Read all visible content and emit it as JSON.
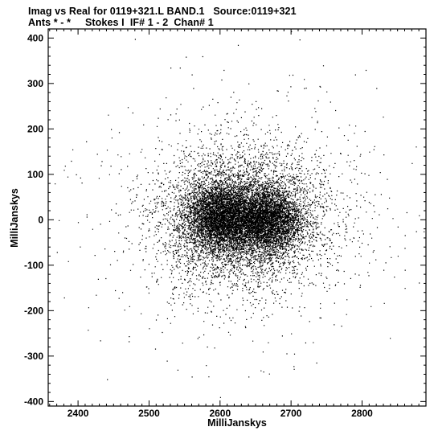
{
  "header": {
    "line1": "Imag vs Real for 0119+321.L BAND.1   Source:0119+321",
    "line2": "Ants * - *     Stokes I  IF# 1 - 2  Chan# 1"
  },
  "chart_data": {
    "type": "scatter",
    "title": "Imag vs Real for 0119+321.L BAND.1   Source:0119+321",
    "subtitle": "Ants * - *     Stokes I  IF# 1 - 2  Chan# 1",
    "xlabel": "MilliJanskys",
    "ylabel": "MilliJanskys",
    "xlim": [
      2358,
      2890
    ],
    "ylim": [
      -410,
      420
    ],
    "xticks": [
      2400,
      2500,
      2600,
      2700,
      2800
    ],
    "yticks": [
      -400,
      -300,
      -200,
      -100,
      0,
      100,
      200,
      300,
      400
    ],
    "grid": false,
    "point_color": "#000000",
    "clusters": [
      {
        "center": [
          2602,
          5
        ],
        "spread": [
          26,
          38
        ],
        "count": 4200
      },
      {
        "center": [
          2666,
          0
        ],
        "spread": [
          24,
          34
        ],
        "count": 3400
      },
      {
        "center": [
          2630,
          5
        ],
        "spread": [
          58,
          78
        ],
        "count": 4800
      },
      {
        "center": [
          2630,
          5
        ],
        "spread": [
          95,
          125
        ],
        "count": 900
      }
    ],
    "outliers": [
      [
        2367,
        80
      ],
      [
        2380,
        110
      ],
      [
        2385,
        95
      ],
      [
        2390,
        130
      ],
      [
        2392,
        155
      ],
      [
        2397,
        100
      ],
      [
        2405,
        82
      ],
      [
        2412,
        12
      ],
      [
        2420,
        -20
      ],
      [
        2425,
        -165
      ],
      [
        2428,
        -130
      ],
      [
        2432,
        120
      ],
      [
        2445,
        -98
      ],
      [
        2452,
        -155
      ],
      [
        2460,
        140
      ],
      [
        2470,
        248
      ],
      [
        2472,
        -190
      ],
      [
        2480,
        398
      ],
      [
        2488,
        150
      ],
      [
        2498,
        105
      ],
      [
        2515,
        245
      ],
      [
        2525,
        -310
      ],
      [
        2575,
        360
      ],
      [
        2600,
        -390
      ],
      [
        2625,
        385
      ],
      [
        2700,
        415
      ],
      [
        2745,
        340
      ],
      [
        2790,
        320
      ],
      [
        2805,
        330
      ],
      [
        2810,
        150
      ],
      [
        2825,
        105
      ],
      [
        2835,
        90
      ],
      [
        2850,
        -15
      ],
      [
        2860,
        -150
      ],
      [
        2870,
        125
      ],
      [
        2880,
        10
      ],
      [
        2876,
        -25
      ],
      [
        2845,
        -125
      ],
      [
        2830,
        -110
      ],
      [
        2820,
        290
      ],
      [
        2815,
        -70
      ],
      [
        2812,
        -190
      ],
      [
        2778,
        -175
      ],
      [
        2760,
        -230
      ],
      [
        2755,
        260
      ],
      [
        2540,
        -330
      ],
      [
        2560,
        -345
      ],
      [
        2580,
        -320
      ],
      [
        2640,
        -345
      ],
      [
        2660,
        -290
      ],
      [
        2700,
        -250
      ],
      [
        2720,
        -270
      ],
      [
        2740,
        -215
      ],
      [
        2530,
        335
      ],
      [
        2560,
        320
      ],
      [
        2605,
        330
      ],
      [
        2640,
        300
      ],
      [
        2680,
        285
      ],
      [
        2718,
        310
      ]
    ]
  }
}
